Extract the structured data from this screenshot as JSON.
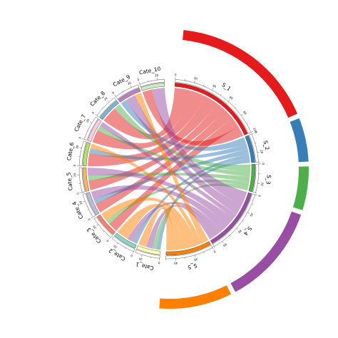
{
  "chart_data": {
    "type": "chord",
    "colors": {
      "S_1": "#e41a1c",
      "S_2": "#377eb8",
      "S_3": "#4daf4a",
      "S_4": "#984ea3",
      "S_5": "#ff7f00",
      "cate_palette": [
        "#ffffb3",
        "#8dd3c7",
        "#fb8072",
        "#bebada",
        "#fdb462",
        "#b3de69",
        "#fccde5",
        "#80b1d3",
        "#bc80bd",
        "#ccebc5"
      ]
    },
    "sources": [
      {
        "name": "S_1",
        "value": 100
      },
      {
        "name": "S_2",
        "value": 30
      },
      {
        "name": "S_3",
        "value": 30
      },
      {
        "name": "S_4",
        "value": 70
      },
      {
        "name": "S_5",
        "value": 50
      }
    ],
    "targets": [
      {
        "name": "Cate_1",
        "value": 28
      },
      {
        "name": "Cate_2",
        "value": 28
      },
      {
        "name": "Cate_3",
        "value": 28
      },
      {
        "name": "Cate_4",
        "value": 28
      },
      {
        "name": "Cate_5",
        "value": 28
      },
      {
        "name": "Cate_6",
        "value": 28
      },
      {
        "name": "Cate_7",
        "value": 28
      },
      {
        "name": "Cate_8",
        "value": 28
      },
      {
        "name": "Cate_9",
        "value": 28
      },
      {
        "name": "Cate_10",
        "value": 28
      }
    ],
    "links": [
      {
        "source": "S_1",
        "target": "Cate_8",
        "value": 20
      },
      {
        "source": "S_1",
        "target": "Cate_7",
        "value": 16
      },
      {
        "source": "S_1",
        "target": "Cate_6",
        "value": 16
      },
      {
        "source": "S_1",
        "target": "Cate_5",
        "value": 12
      },
      {
        "source": "S_1",
        "target": "Cate_4",
        "value": 12
      },
      {
        "source": "S_1",
        "target": "Cate_3",
        "value": 12
      },
      {
        "source": "S_1",
        "target": "Cate_10",
        "value": 12
      },
      {
        "source": "S_2",
        "target": "Cate_9",
        "value": 8
      },
      {
        "source": "S_2",
        "target": "Cate_6",
        "value": 6
      },
      {
        "source": "S_2",
        "target": "Cate_4",
        "value": 6
      },
      {
        "source": "S_2",
        "target": "Cate_2",
        "value": 5
      },
      {
        "source": "S_2",
        "target": "Cate_1",
        "value": 5
      },
      {
        "source": "S_3",
        "target": "Cate_8",
        "value": 8
      },
      {
        "source": "S_3",
        "target": "Cate_7",
        "value": 6
      },
      {
        "source": "S_3",
        "target": "Cate_5",
        "value": 6
      },
      {
        "source": "S_3",
        "target": "Cate_3",
        "value": 5
      },
      {
        "source": "S_3",
        "target": "Cate_1",
        "value": 5
      },
      {
        "source": "S_4",
        "target": "Cate_10",
        "value": 16
      },
      {
        "source": "S_4",
        "target": "Cate_9",
        "value": 12
      },
      {
        "source": "S_4",
        "target": "Cate_7",
        "value": 6
      },
      {
        "source": "S_4",
        "target": "Cate_5",
        "value": 10
      },
      {
        "source": "S_4",
        "target": "Cate_4",
        "value": 10
      },
      {
        "source": "S_4",
        "target": "Cate_2",
        "value": 8
      },
      {
        "source": "S_4",
        "target": "Cate_1",
        "value": 8
      },
      {
        "source": "S_5",
        "target": "Cate_9",
        "value": 8
      },
      {
        "source": "S_5",
        "target": "Cate_6",
        "value": 6
      },
      {
        "source": "S_5",
        "target": "Cate_3",
        "value": 11
      },
      {
        "source": "S_5",
        "target": "Cate_2",
        "value": 15
      },
      {
        "source": "S_5",
        "target": "Cate_1",
        "value": 10
      }
    ],
    "tick_labels": {
      "S_1": [
        "0",
        "20",
        "40",
        "60",
        "80",
        "100"
      ],
      "S_2": [
        "0",
        "20"
      ],
      "S_3": [
        "0",
        "20"
      ],
      "S_4": [
        "0",
        "20",
        "40",
        "60"
      ],
      "S_5": [
        "0",
        "20",
        "40"
      ],
      "Cate_1": [
        "0",
        "20"
      ],
      "Cate_2": [
        "0",
        "20"
      ],
      "Cate_3": [
        "0",
        "20"
      ],
      "Cate_4": [
        "0",
        "20"
      ],
      "Cate_5": [
        "0",
        "20"
      ],
      "Cate_6": [
        "0",
        "20"
      ],
      "Cate_7": [
        "0",
        "20"
      ],
      "Cate_8": [
        "0",
        "20"
      ],
      "Cate_9": [
        "0",
        "20"
      ],
      "Cate_10": [
        "0",
        "20"
      ]
    }
  }
}
